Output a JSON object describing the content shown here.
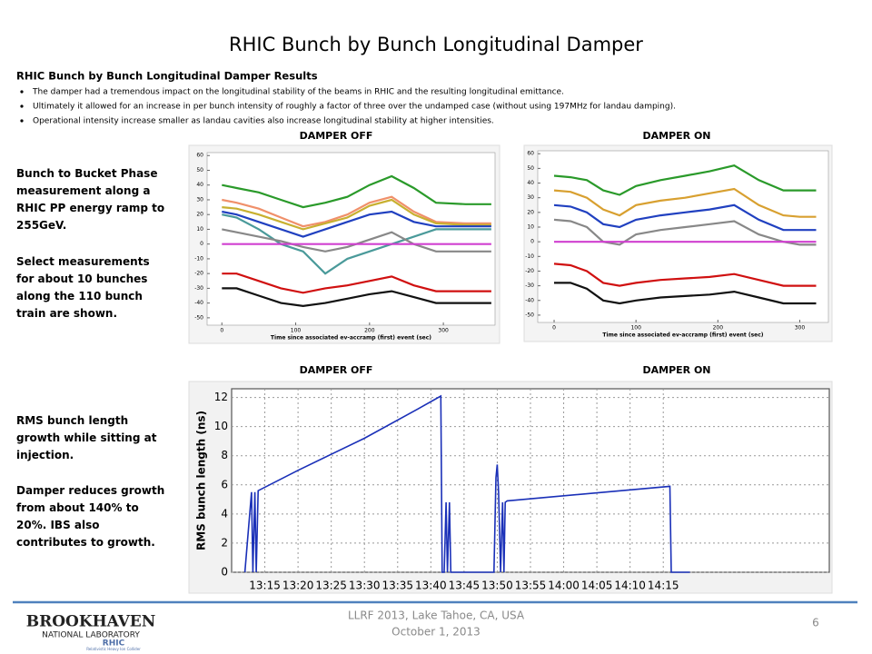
{
  "title": "RHIC Bunch by Bunch Longitudinal Damper",
  "section": {
    "heading": "RHIC Bunch by Bunch Longitudinal Damper Results",
    "bullets": [
      "The damper had a tremendous impact on the longitudinal stability of the beams in RHIC and the resulting longitudinal emittance.",
      "Ultimately it allowed for an increase in per bunch intensity of roughly a factor of three over the undamped case (without using 197MHz for landau damping).",
      "Operational intensity increase smaller as landau cavities also increase longitudinal stability at higher intensities."
    ]
  },
  "panel_labels": [
    "DAMPER OFF",
    "DAMPER ON",
    "DAMPER OFF",
    "DAMPER ON"
  ],
  "side_notes": [
    "Bunch to Bucket Phase measurement along a RHIC PP energy ramp to 255GeV.",
    "Select measurements for about 10 bunches along the 110 bunch train are shown.",
    "RMS bunch length growth while sitting at injection.",
    "Damper reduces growth from about 140% to 20%.  IBS also contributes to growth."
  ],
  "charts": [
    {
      "type": "line",
      "x_label": "Time since associated ev-accramp (first) event (sec)",
      "xlim": [
        -20,
        370
      ],
      "xticks": [
        0,
        100,
        200,
        300
      ],
      "ylim": [
        -55,
        62
      ],
      "yticks": [
        -50,
        -40,
        -30,
        -20,
        -10,
        0,
        10,
        20,
        30,
        40,
        50,
        60
      ],
      "grid": false,
      "x": [
        0,
        20,
        50,
        80,
        110,
        140,
        170,
        200,
        230,
        260,
        290,
        330,
        350,
        365
      ],
      "series": [
        {
          "color": "#2a9a2a",
          "values": [
            40,
            38,
            35,
            30,
            25,
            28,
            32,
            40,
            46,
            38,
            28,
            27,
            27,
            27
          ]
        },
        {
          "color": "#f0906a",
          "values": [
            30,
            28,
            24,
            18,
            12,
            15,
            20,
            28,
            32,
            22,
            15,
            14,
            14,
            14
          ]
        },
        {
          "color": "#c8b030",
          "values": [
            25,
            24,
            20,
            15,
            10,
            14,
            18,
            26,
            30,
            20,
            14,
            13,
            13,
            13
          ]
        },
        {
          "color": "#2040c0",
          "values": [
            22,
            20,
            15,
            10,
            5,
            10,
            15,
            20,
            22,
            15,
            12,
            12,
            12,
            12
          ]
        },
        {
          "color": "#4a9a9a",
          "values": [
            20,
            18,
            10,
            0,
            -5,
            -20,
            -10,
            -5,
            0,
            5,
            10,
            10,
            10,
            10
          ]
        },
        {
          "color": "#888888",
          "values": [
            10,
            8,
            5,
            2,
            -2,
            -5,
            -2,
            3,
            8,
            0,
            -5,
            -5,
            -5,
            -5
          ]
        },
        {
          "color": "#d040d0",
          "values": [
            0,
            0,
            0,
            0,
            0,
            0,
            0,
            0,
            0,
            0,
            0,
            0,
            0,
            0
          ]
        },
        {
          "color": "#d01010",
          "values": [
            -20,
            -20,
            -25,
            -30,
            -33,
            -30,
            -28,
            -25,
            -22,
            -28,
            -32,
            -32,
            -32,
            -32
          ]
        },
        {
          "color": "#111111",
          "values": [
            -30,
            -30,
            -35,
            -40,
            -42,
            -40,
            -37,
            -34,
            -32,
            -36,
            -40,
            -40,
            -40,
            -40
          ]
        }
      ]
    },
    {
      "type": "line",
      "x_label": "Time since associated ev-accramp (first) event (sec)",
      "xlim": [
        -20,
        335
      ],
      "xticks": [
        0,
        100,
        200,
        300
      ],
      "ylim": [
        -55,
        62
      ],
      "yticks": [
        -50,
        -40,
        -30,
        -20,
        -10,
        0,
        10,
        20,
        30,
        40,
        50,
        60
      ],
      "grid": false,
      "x": [
        0,
        20,
        40,
        60,
        80,
        100,
        130,
        160,
        190,
        220,
        250,
        280,
        300,
        320
      ],
      "series": [
        {
          "color": "#2a9a2a",
          "values": [
            45,
            44,
            42,
            35,
            32,
            38,
            42,
            45,
            48,
            52,
            42,
            35,
            35,
            35
          ]
        },
        {
          "color": "#d8a030",
          "values": [
            35,
            34,
            30,
            22,
            18,
            25,
            28,
            30,
            33,
            36,
            25,
            18,
            17,
            17
          ]
        },
        {
          "color": "#2040c0",
          "values": [
            25,
            24,
            20,
            12,
            10,
            15,
            18,
            20,
            22,
            25,
            15,
            8,
            8,
            8
          ]
        },
        {
          "color": "#888888",
          "values": [
            15,
            14,
            10,
            0,
            -2,
            5,
            8,
            10,
            12,
            14,
            5,
            0,
            -2,
            -2
          ]
        },
        {
          "color": "#d040d0",
          "values": [
            0,
            0,
            0,
            0,
            0,
            0,
            0,
            0,
            0,
            0,
            0,
            0,
            0,
            0
          ]
        },
        {
          "color": "#d01010",
          "values": [
            -15,
            -16,
            -20,
            -28,
            -30,
            -28,
            -26,
            -25,
            -24,
            -22,
            -26,
            -30,
            -30,
            -30
          ]
        },
        {
          "color": "#111111",
          "values": [
            -28,
            -28,
            -32,
            -40,
            -42,
            -40,
            -38,
            -37,
            -36,
            -34,
            -38,
            -42,
            -42,
            -42
          ]
        }
      ]
    },
    {
      "type": "line",
      "y_label": "RMS bunch length (ns)",
      "xlim": [
        790,
        880
      ],
      "xticks": [
        {
          "value": 795,
          "label": "13:15"
        },
        {
          "value": 800,
          "label": "13:20"
        },
        {
          "value": 805,
          "label": "13:25"
        },
        {
          "value": 810,
          "label": "13:30"
        },
        {
          "value": 815,
          "label": "13:35"
        },
        {
          "value": 820,
          "label": "13:40"
        },
        {
          "value": 825,
          "label": "13:45"
        },
        {
          "value": 830,
          "label": "13:50"
        },
        {
          "value": 835,
          "label": "13:55"
        },
        {
          "value": 840,
          "label": "14:00"
        },
        {
          "value": 845,
          "label": "14:05"
        },
        {
          "value": 850,
          "label": "14:10"
        },
        {
          "value": 855,
          "label": "14:15"
        }
      ],
      "ylim": [
        0,
        12.6
      ],
      "yticks": [
        0,
        2,
        4,
        6,
        8,
        10,
        12
      ],
      "grid": true,
      "x": [
        792,
        793,
        793.2,
        793.5,
        793.7,
        794,
        800,
        810,
        818,
        821.5,
        821.7,
        822,
        822.3,
        822.5,
        822.8,
        823,
        829.5,
        829.8,
        830,
        830.2,
        830.5,
        830.8,
        831,
        831.2,
        831.5,
        856,
        856.2,
        859
      ],
      "series": [
        {
          "color": "#1a30b8",
          "values": [
            0,
            5.5,
            0,
            5.5,
            0,
            5.6,
            7.0,
            9.2,
            11.2,
            12.1,
            0,
            0,
            4.8,
            0,
            4.8,
            0,
            0,
            6.5,
            7.4,
            5.5,
            0,
            4.8,
            0,
            4.8,
            4.9,
            5.9,
            0,
            0
          ]
        }
      ]
    }
  ],
  "footer": {
    "conference": "LLRF 2013, Lake Tahoe, CA, USA",
    "date": "October 1, 2013",
    "page": "6",
    "logo": "BROOKHAVEN",
    "logo_sub": "NATIONAL LABORATORY",
    "logo_rhic": "RHIC",
    "logo_rhic_sub": "Relativistic Heavy Ion Collider"
  }
}
